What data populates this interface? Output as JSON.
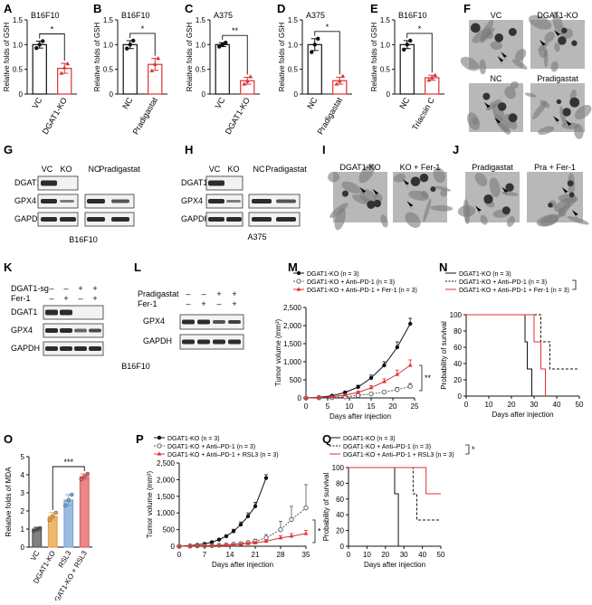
{
  "figure": {
    "panel_letters": [
      "A",
      "B",
      "C",
      "D",
      "E",
      "F",
      "G",
      "H",
      "I",
      "J",
      "K",
      "L",
      "M",
      "N",
      "O",
      "P",
      "Q"
    ]
  },
  "chart_data": [
    {
      "panel": "A",
      "type": "bar",
      "title": "B16F10",
      "ylabel": "Relative folds of GSH",
      "categories": [
        "VC",
        "DGAT1-KO"
      ],
      "values": [
        1.0,
        0.52
      ],
      "errors": [
        0.07,
        0.1
      ],
      "points": [
        [
          0.93,
          1.0,
          1.07
        ],
        [
          0.42,
          0.53,
          0.61
        ]
      ],
      "colors": [
        "#111111",
        "#e03030"
      ],
      "ylim": [
        0,
        1.5
      ],
      "yticks": [
        "0",
        "0.5",
        "1.0",
        "1.5"
      ],
      "significance": "*"
    },
    {
      "panel": "B",
      "type": "bar",
      "title": "B16F10",
      "ylabel": "Relative folds of GSH",
      "categories": [
        "NC",
        "Pradigastat"
      ],
      "values": [
        1.0,
        0.6
      ],
      "errors": [
        0.08,
        0.12
      ],
      "points": [
        [
          0.92,
          1.0,
          1.08
        ],
        [
          0.47,
          0.6,
          0.72
        ]
      ],
      "colors": [
        "#111111",
        "#e03030"
      ],
      "ylim": [
        0,
        1.5
      ],
      "yticks": [
        "0",
        "0.5",
        "1.0",
        "1.5"
      ],
      "significance": "*"
    },
    {
      "panel": "C",
      "type": "bar",
      "title": "A375",
      "ylabel": "Relative folds of GSH",
      "categories": [
        "VC",
        "DGAT1-KO"
      ],
      "values": [
        1.0,
        0.27
      ],
      "errors": [
        0.04,
        0.07
      ],
      "points": [
        [
          0.96,
          1.0,
          1.04
        ],
        [
          0.2,
          0.26,
          0.35
        ]
      ],
      "colors": [
        "#111111",
        "#e03030"
      ],
      "ylim": [
        0,
        1.5
      ],
      "yticks": [
        "0",
        "0.5",
        "1.0",
        "1.5"
      ],
      "significance": "**"
    },
    {
      "panel": "D",
      "type": "bar",
      "title": "A375",
      "ylabel": "Relative folds of GSH",
      "categories": [
        "NC",
        "Pradigastat"
      ],
      "values": [
        1.0,
        0.27
      ],
      "errors": [
        0.12,
        0.07
      ],
      "points": [
        [
          0.85,
          1.0,
          1.12
        ],
        [
          0.2,
          0.26,
          0.36
        ]
      ],
      "colors": [
        "#111111",
        "#e03030"
      ],
      "ylim": [
        0,
        1.5
      ],
      "yticks": [
        "0",
        "0.5",
        "1.0",
        "1.5"
      ],
      "significance": "*"
    },
    {
      "panel": "E",
      "type": "bar",
      "title": "B16F10",
      "ylabel": "Relative folds of GSH",
      "categories": [
        "NC",
        "Triacsin C"
      ],
      "values": [
        1.0,
        0.33
      ],
      "errors": [
        0.08,
        0.05
      ],
      "points": [
        [
          0.9,
          1.0,
          1.08
        ],
        [
          0.28,
          0.33,
          0.38
        ]
      ],
      "colors": [
        "#111111",
        "#e03030"
      ],
      "ylim": [
        0,
        1.5
      ],
      "yticks": [
        "0",
        "0.5",
        "1.0",
        "1.5"
      ],
      "significance": "*"
    },
    {
      "panel": "M",
      "type": "line",
      "ylabel": "Tumor volume (mm³)",
      "xlabel": "Days after injection",
      "xlim": [
        0,
        25
      ],
      "ylim": [
        0,
        2500
      ],
      "xticks": [
        "0",
        "5",
        "10",
        "15",
        "20",
        "25"
      ],
      "yticks": [
        "0",
        "500",
        "1,000",
        "1,500",
        "2,000",
        "2,500"
      ],
      "x": [
        0,
        3,
        6,
        9,
        12,
        15,
        18,
        21,
        24
      ],
      "series": [
        {
          "name": "DGAT1-KO (n = 3)",
          "color": "#111111",
          "marker": "filled",
          "values": [
            0,
            20,
            60,
            150,
            300,
            550,
            900,
            1400,
            2050
          ],
          "errors": [
            0,
            5,
            15,
            30,
            50,
            80,
            100,
            150,
            150
          ]
        },
        {
          "name": "DGAT1-KO + Anti–PD-1 (n = 3)",
          "color": "#555555",
          "marker": "open",
          "dash": true,
          "values": [
            0,
            5,
            10,
            30,
            70,
            110,
            160,
            230,
            320
          ],
          "errors": [
            0,
            2,
            5,
            10,
            20,
            30,
            40,
            60,
            80
          ]
        },
        {
          "name": "DGAT1-KO + Anti–PD-1 + Fer-1 (n = 3)",
          "color": "#e03030",
          "marker": "triangle",
          "values": [
            0,
            10,
            30,
            80,
            150,
            280,
            450,
            650,
            900
          ],
          "errors": [
            0,
            5,
            10,
            20,
            40,
            60,
            80,
            120,
            150
          ]
        }
      ],
      "significance": "**"
    },
    {
      "panel": "N",
      "type": "line",
      "ylabel": "Probability of survival",
      "xlabel": "Days after injection",
      "xlim": [
        0,
        50
      ],
      "ylim": [
        0,
        100
      ],
      "xticks": [
        "0",
        "10",
        "20",
        "30",
        "40",
        "50"
      ],
      "yticks": [
        "0",
        "20",
        "40",
        "60",
        "80",
        "100"
      ],
      "series": [
        {
          "name": "DGAT1-KO (n = 3)",
          "color": "#111111",
          "steps": [
            [
              0,
              100
            ],
            [
              26,
              100
            ],
            [
              26,
              66.7
            ],
            [
              27,
              66.7
            ],
            [
              27,
              33.3
            ],
            [
              29,
              33.3
            ],
            [
              29,
              0
            ]
          ]
        },
        {
          "name": "DGAT1-KO + Anti–PD-1 (n = 3)",
          "color": "#111111",
          "dash": true,
          "steps": [
            [
              0,
              100
            ],
            [
              33,
              100
            ],
            [
              33,
              66.7
            ],
            [
              37,
              66.7
            ],
            [
              37,
              33.3
            ],
            [
              50,
              33.3
            ]
          ]
        },
        {
          "name": "DGAT1-KO + Anti–PD-1 + Fer-1 (n = 3)",
          "color": "#e03030",
          "steps": [
            [
              0,
              100
            ],
            [
              30,
              100
            ],
            [
              30,
              66.7
            ],
            [
              33,
              66.7
            ],
            [
              33,
              33.3
            ],
            [
              35,
              33.3
            ],
            [
              35,
              0
            ]
          ]
        }
      ]
    },
    {
      "panel": "O",
      "type": "bar",
      "ylabel": "Relative folds of MDA",
      "categories": [
        "VC",
        "DGAT1-KO",
        "RSL3",
        "DGAT1-KO + RSL3"
      ],
      "values": [
        1.0,
        1.7,
        2.6,
        3.9
      ],
      "errors": [
        0.1,
        0.2,
        0.3,
        0.15
      ],
      "points": [
        [
          0.9,
          1.0,
          1.05
        ],
        [
          1.5,
          1.7,
          1.9
        ],
        [
          2.3,
          2.6,
          2.9
        ],
        [
          3.75,
          3.9,
          4.05
        ]
      ],
      "colors": [
        "#555555",
        "#e8a040",
        "#7aa6d6",
        "#e06060"
      ],
      "ylim": [
        0,
        5
      ],
      "yticks": [
        "0",
        "1",
        "2",
        "3",
        "4",
        "5"
      ],
      "significance": "***"
    },
    {
      "panel": "P",
      "type": "line",
      "ylabel": "Tumor volume (mm³)",
      "xlabel": "Days after injection",
      "xlim": [
        0,
        35
      ],
      "ylim": [
        0,
        2500
      ],
      "xticks": [
        "0",
        "7",
        "14",
        "21",
        "28",
        "35"
      ],
      "yticks": [
        "0",
        "500",
        "1,000",
        "1,500",
        "2,000",
        "2,500"
      ],
      "x": [
        0,
        3,
        5,
        7,
        9,
        11,
        13,
        15,
        17,
        19,
        21,
        24,
        28,
        31,
        35
      ],
      "series": [
        {
          "name": "DGAT1-KO (n = 3)",
          "color": "#111111",
          "marker": "filled",
          "values": [
            0,
            20,
            40,
            70,
            120,
            200,
            300,
            450,
            650,
            900,
            1200,
            2050,
            null,
            null,
            null
          ],
          "errors": [
            0,
            5,
            10,
            15,
            20,
            30,
            40,
            60,
            80,
            100,
            120,
            100,
            null,
            null,
            null
          ]
        },
        {
          "name": "DGAT1-KO + Anti–PD-1 (n = 3)",
          "color": "#555555",
          "marker": "open",
          "dash": true,
          "values": [
            0,
            5,
            10,
            15,
            20,
            30,
            40,
            60,
            80,
            110,
            150,
            250,
            500,
            800,
            1150
          ],
          "errors": [
            0,
            2,
            4,
            6,
            8,
            10,
            15,
            20,
            30,
            40,
            60,
            100,
            250,
            400,
            700
          ]
        },
        {
          "name": "DGAT1-KO + Anti–PD-1 + RSL3 (n = 3)",
          "color": "#e03030",
          "marker": "triangle",
          "values": [
            0,
            5,
            10,
            15,
            20,
            25,
            35,
            45,
            60,
            80,
            100,
            150,
            250,
            300,
            380
          ],
          "errors": [
            0,
            2,
            3,
            4,
            5,
            8,
            10,
            15,
            20,
            25,
            30,
            40,
            60,
            80,
            100
          ]
        }
      ],
      "significance": "*"
    },
    {
      "panel": "Q",
      "type": "line",
      "ylabel": "Probability of survival",
      "xlabel": "Days after injection",
      "xlim": [
        0,
        50
      ],
      "ylim": [
        0,
        100
      ],
      "xticks": [
        "0",
        "10",
        "20",
        "30",
        "40",
        "50"
      ],
      "yticks": [
        "0",
        "20",
        "40",
        "60",
        "80",
        "100"
      ],
      "series": [
        {
          "name": "DGAT1-KO (n = 3)",
          "color": "#111111",
          "steps": [
            [
              0,
              100
            ],
            [
              25,
              100
            ],
            [
              25,
              66.7
            ],
            [
              27,
              66.7
            ],
            [
              27,
              0
            ]
          ]
        },
        {
          "name": "DGAT1-KO + Anti–PD-1 (n = 3)",
          "color": "#111111",
          "dash": true,
          "steps": [
            [
              0,
              100
            ],
            [
              35,
              100
            ],
            [
              35,
              66.7
            ],
            [
              37,
              66.7
            ],
            [
              37,
              33.3
            ],
            [
              50,
              33.3
            ]
          ]
        },
        {
          "name": "DGAT1-KO + Anti–PD-1 + RSL3 (n = 3)",
          "color": "#e03030",
          "steps": [
            [
              0,
              100
            ],
            [
              42,
              100
            ],
            [
              42,
              66.7
            ],
            [
              50,
              66.7
            ]
          ]
        }
      ],
      "significance": "*"
    }
  ],
  "micrographs": {
    "F": [
      "VC",
      "DGAT1-KO",
      "NC",
      "Pradigastat"
    ],
    "I": [
      "DGAT1-KO",
      "KO + Fer-1"
    ],
    "J": [
      "Pradigastat",
      "Pra + Fer-1"
    ]
  },
  "blots": {
    "G": {
      "cell_line": "B16F10",
      "lanes": [
        "VC",
        "KO",
        "NC",
        "Pradigastat"
      ],
      "rows": [
        "DGAT1",
        "GPX4",
        "GAPDH"
      ]
    },
    "H": {
      "cell_line": "A375",
      "lanes": [
        "VC",
        "KO",
        "NC",
        "Pradigastat"
      ],
      "rows": [
        "DGAT1",
        "GPX4",
        "GAPDH"
      ]
    },
    "K": {
      "treatments": [
        {
          "label": "DGAT1-sg",
          "signs": [
            "–",
            "–",
            "+",
            "+"
          ]
        },
        {
          "label": "Fer-1",
          "signs": [
            "–",
            "+",
            "–",
            "+"
          ]
        }
      ],
      "rows": [
        "DGAT1",
        "GPX4",
        "GAPDH"
      ]
    },
    "L": {
      "treatments": [
        {
          "label": "Pradigastat",
          "signs": [
            "–",
            "–",
            "+",
            "+"
          ]
        },
        {
          "label": "Fer-1",
          "signs": [
            "–",
            "+",
            "–",
            "+"
          ]
        }
      ],
      "rows": [
        "GPX4",
        "GAPDH"
      ]
    },
    "KL_cell_line": "B16F10"
  }
}
